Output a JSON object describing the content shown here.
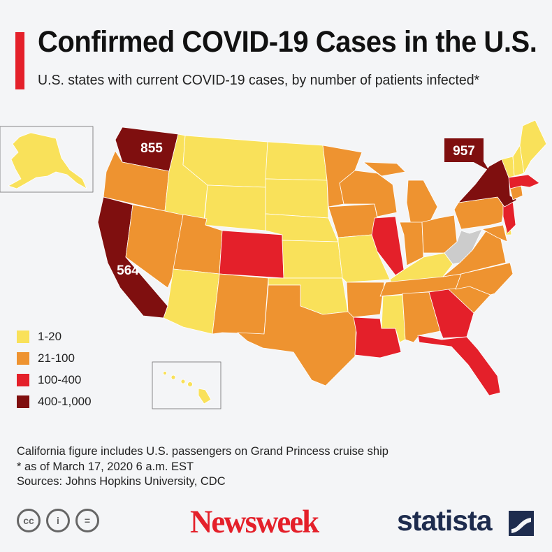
{
  "header": {
    "title": "Confirmed COVID-19 Cases in the U.S.",
    "subtitle": "U.S. states with current COVID-19 cases, by number of patients infected*"
  },
  "colors": {
    "accent": "#e4202a",
    "bin_1_20": "#f9e15a",
    "bin_21_100": "#ee9330",
    "bin_100_400": "#e4202a",
    "bin_400_1000": "#7f0f0f",
    "no_data": "#cccccc"
  },
  "legend": [
    {
      "label": "1-20",
      "color": "#f9e15a"
    },
    {
      "label": "21-100",
      "color": "#ee9330"
    },
    {
      "label": "100-400",
      "color": "#e4202a"
    },
    {
      "label": "400-1,000",
      "color": "#7f0f0f"
    }
  ],
  "callouts": {
    "washington": "855",
    "new_york": "957",
    "california": "564"
  },
  "states": {
    "1-20": [
      "AK",
      "HI",
      "MT",
      "ID",
      "WY",
      "ND",
      "SD",
      "NE",
      "KS",
      "OK",
      "MO",
      "AZ",
      "KY",
      "MS",
      "ME",
      "VT",
      "NH",
      "DE"
    ],
    "21-100": [
      "OR",
      "NV",
      "UT",
      "NM",
      "TX",
      "MN",
      "IA",
      "WI",
      "MI",
      "IN",
      "OH",
      "PA",
      "AR",
      "TN",
      "AL",
      "SC",
      "NC",
      "VA",
      "MD",
      "CT"
    ],
    "100-400": [
      "CO",
      "IL",
      "LA",
      "GA",
      "FL",
      "NJ",
      "MA"
    ],
    "400-1,000": [
      "WA",
      "CA",
      "NY"
    ],
    "no data": [
      "WV"
    ]
  },
  "notes": [
    "California figure includes U.S. passengers on Grand Princess cruise ship",
    "* as of March 17, 2020 6 a.m. EST",
    "Sources: Johns Hopkins University, CDC"
  ],
  "footer": {
    "cc_icons": [
      "creative-commons-icon",
      "attribution-icon",
      "no-derivatives-icon"
    ],
    "cc_glyphs": [
      "cc",
      "i",
      "="
    ],
    "newsweek_logo": "Newsweek",
    "statista_logo": "statista"
  }
}
